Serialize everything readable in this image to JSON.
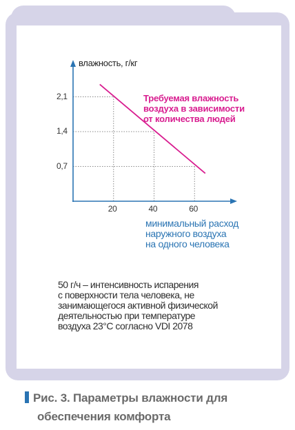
{
  "chart_data": {
    "type": "line",
    "xlabel": "минимальный расход\nнаружного воздуха\nна одного человека",
    "ylabel": "влажность, г/кг",
    "xticks": [
      "20",
      "40",
      "60"
    ],
    "yticks": [
      "2,1",
      "1,4",
      "0,7"
    ],
    "xlim": [
      0,
      80
    ],
    "ylim": [
      0,
      2.8
    ],
    "series": [
      {
        "x": [
          13.2,
          65.3
        ],
        "y": [
          2.35,
          0.56
        ]
      }
    ],
    "annotation": "Требуемая влажность\nвоздуха в зависимости\nот количества людей",
    "colors": {
      "line": "#d81c8f",
      "axis": "#2a74b3",
      "grid": "#888888"
    }
  },
  "note": "50 г/ч – интенсивность испарения\nс поверхности тела человека, не\nзанимающегося активной физической\nдеятельностью при температуре\nвоздуха 23°С согласно VDI 2078",
  "caption": {
    "line1": "Рис. 3. Параметры влажности для",
    "line2": "обеспечения комфорта"
  }
}
